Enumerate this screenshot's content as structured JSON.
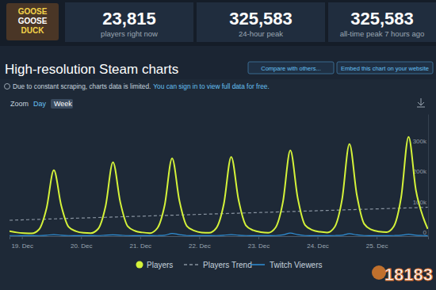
{
  "header": {
    "logo": [
      "GOOSE",
      "GOOSE",
      "DUCK"
    ],
    "stats": [
      {
        "value": "23,815",
        "label": "players right now"
      },
      {
        "value": "325,583",
        "label": "24-hour peak"
      },
      {
        "value": "325,583",
        "label": "all-time peak 7 hours ago"
      }
    ]
  },
  "page": {
    "title": "High-resolution Steam charts",
    "buttons": [
      "Compare with others...",
      "Embed this chart on your website"
    ],
    "notice": [
      "Due to constant scraping, charts data is limited.",
      "You can sign in to view full data for free."
    ],
    "zoom": {
      "label": "Zoom",
      "options": [
        "Day",
        "Week"
      ]
    },
    "watermark": "18183"
  },
  "chart_data": {
    "type": "line",
    "x": [
      18.79,
      18.915,
      19.04,
      19.165,
      19.29,
      19.415,
      19.54,
      19.665,
      19.79,
      19.915,
      20.04,
      20.165,
      20.29,
      20.415,
      20.54,
      20.665,
      20.79,
      20.915,
      21.04,
      21.165,
      21.29,
      21.415,
      21.54,
      21.665,
      21.79,
      21.915,
      22.04,
      22.165,
      22.29,
      22.415,
      22.54,
      22.665,
      22.79,
      22.915,
      23.04,
      23.165,
      23.29,
      23.415,
      23.54,
      23.665,
      23.79,
      23.915,
      24.04,
      24.165,
      24.29,
      24.415,
      24.54,
      24.665,
      24.79,
      24.915,
      25.04,
      25.165,
      25.29,
      25.415,
      25.54,
      25.665,
      25.79,
      25.865
    ],
    "xlim": [
      18.79,
      25.87
    ],
    "xticks": [
      {
        "value": 19,
        "label": "19. Dec"
      },
      {
        "value": 20,
        "label": "20. Dec"
      },
      {
        "value": 21,
        "label": "21. Dec"
      },
      {
        "value": 22,
        "label": "22. Dec"
      },
      {
        "value": 23,
        "label": "23. Dec"
      },
      {
        "value": 24,
        "label": "24. Dec"
      },
      {
        "value": 25,
        "label": "25. Dec"
      }
    ],
    "ylim": [
      0,
      400000
    ],
    "yticks": [
      0,
      {
        "value": 100000,
        "label": "100k"
      },
      {
        "value": 200000,
        "label": "200k"
      },
      {
        "value": 300000,
        "label": "300k"
      }
    ],
    "grid": false,
    "legend": "bottom",
    "series": [
      {
        "name": "Players",
        "color": "#d4f23a",
        "marker": "circle",
        "values": [
          16000,
          12000,
          10000,
          9000,
          22000,
          90000,
          216000,
          100000,
          30000,
          16000,
          11000,
          10000,
          24000,
          98000,
          242000,
          110000,
          32000,
          17000,
          12000,
          10000,
          26000,
          102000,
          255000,
          115000,
          33000,
          18000,
          12000,
          11000,
          27000,
          105000,
          260000,
          118000,
          35000,
          19000,
          13000,
          11000,
          28000,
          112000,
          281000,
          125000,
          36000,
          20000,
          14000,
          12000,
          30000,
          120000,
          302000,
          135000,
          40000,
          21000,
          15000,
          13000,
          32000,
          128000,
          325583,
          150000,
          60000,
          23815
        ]
      },
      {
        "name": "Players Trend",
        "color": "#8893a0",
        "line_style": "dashed",
        "values": [
          52000,
          52750,
          53500,
          54250,
          55000,
          55750,
          56500,
          57250,
          58000,
          58750,
          59500,
          60250,
          61000,
          61750,
          62500,
          63250,
          64000,
          64750,
          65500,
          66250,
          67000,
          67750,
          68500,
          69250,
          70000,
          70750,
          71500,
          72250,
          73000,
          73750,
          74500,
          75250,
          76000,
          76750,
          77500,
          78250,
          79000,
          79750,
          80500,
          81250,
          82000,
          82750,
          83500,
          84250,
          85000,
          85750,
          86500,
          87250,
          88000,
          88750,
          89500,
          90250,
          91000,
          91750,
          92500,
          93250,
          94000,
          94750
        ]
      },
      {
        "name": "Twitch Viewers",
        "color": "#2f8fd6",
        "values": [
          2000,
          2000,
          1500,
          1500,
          2000,
          3000,
          5000,
          3000,
          2000,
          1500,
          1500,
          1500,
          2000,
          3000,
          4000,
          3000,
          2000,
          1500,
          1500,
          1500,
          2000,
          3000,
          9000,
          5000,
          2000,
          1500,
          1500,
          1500,
          2000,
          3000,
          5000,
          3000,
          2000,
          1500,
          1500,
          1500,
          2000,
          4000,
          10000,
          5000,
          2000,
          1500,
          1500,
          1500,
          2000,
          3000,
          8000,
          4000,
          2000,
          1500,
          1500,
          1500,
          2000,
          3000,
          6000,
          3000,
          2000,
          1500
        ]
      }
    ]
  }
}
